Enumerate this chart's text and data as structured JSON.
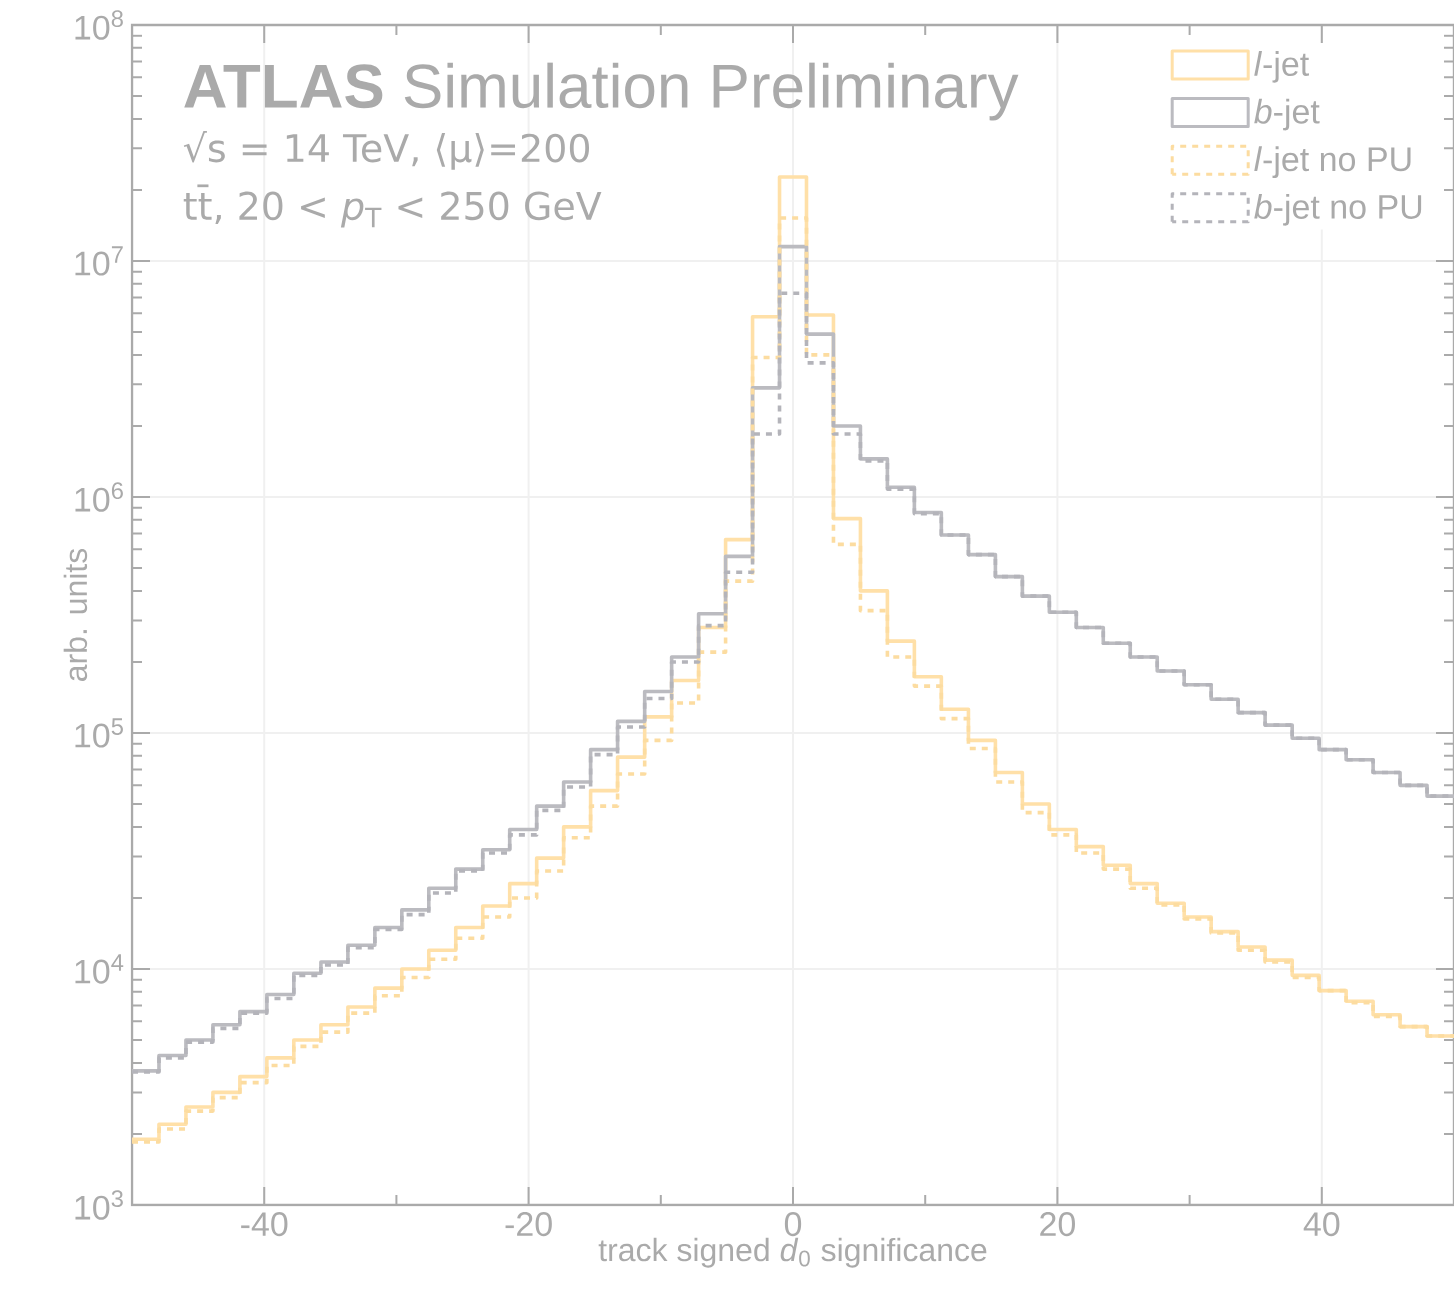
{
  "chart_data": {
    "type": "histogram",
    "title": "**ATLAS** Simulation Preliminary",
    "annotations": [
      "√s = 14 TeV, ⟨μ⟩=200",
      "tt̄, 20 < *p*$_{T}$ < 250 GeV"
    ],
    "xlabel": "track signed *d*$_{0}$ significance",
    "ylabel": "arb. units",
    "bins": [
      -50,
      -47.96,
      -45.92,
      -43.88,
      -41.84,
      -39.8,
      -37.76,
      -35.71,
      -33.67,
      -31.63,
      -29.59,
      -27.55,
      -25.51,
      -23.47,
      -21.43,
      -19.39,
      -17.35,
      -15.31,
      -13.27,
      -11.22,
      -9.18,
      -7.14,
      -5.1,
      -3.06,
      -1.02,
      1.02,
      3.06,
      5.1,
      7.14,
      9.18,
      11.22,
      13.27,
      15.31,
      17.35,
      19.39,
      21.43,
      23.47,
      25.51,
      27.55,
      29.59,
      31.63,
      33.67,
      35.71,
      37.76,
      39.8,
      41.84,
      43.88,
      45.92,
      47.96,
      50
    ],
    "series": [
      {
        "name": "*l*-jet",
        "color": "#ffe0a8",
        "line_style": "solid",
        "values": [
          1900,
          2200,
          2600,
          3000,
          3500,
          4200,
          5000,
          5800,
          6900,
          8300,
          10000,
          12000,
          15000,
          18500,
          23000,
          29500,
          40000,
          57000,
          79000,
          117000,
          167000,
          280000,
          660000,
          5800000,
          22700000,
          5900000,
          810000,
          400000,
          245000,
          173000,
          126000,
          93000,
          68000,
          50000,
          39000,
          33000,
          27500,
          23000,
          19000,
          16600,
          14400,
          12400,
          10900,
          9400,
          8100,
          7300,
          6400,
          5700,
          5200
        ]
      },
      {
        "name": "*b*-jet",
        "color": "#bbbbc0",
        "line_style": "solid",
        "values": [
          3700,
          4300,
          5000,
          5800,
          6600,
          7800,
          9600,
          10700,
          12600,
          15000,
          17800,
          22000,
          26500,
          32000,
          39000,
          49000,
          62000,
          85000,
          112000,
          150000,
          210000,
          320000,
          560000,
          2900000,
          11500000,
          4900000,
          2000000,
          1450000,
          1100000,
          860000,
          690000,
          570000,
          460000,
          380000,
          325000,
          280000,
          240000,
          210000,
          183000,
          160000,
          139000,
          122000,
          108000,
          95000,
          85000,
          77000,
          68000,
          60000,
          54000
        ]
      },
      {
        "name": "*l*-jet no PU",
        "color": "#fcdca0",
        "line_style": "dashed",
        "values": [
          1850,
          2100,
          2500,
          2850,
          3300,
          3900,
          4700,
          5400,
          6500,
          7700,
          9200,
          11000,
          13500,
          16600,
          20000,
          26000,
          36000,
          49000,
          67000,
          93000,
          134000,
          220000,
          440000,
          3900000,
          15200000,
          4000000,
          630000,
          330000,
          210000,
          158000,
          115000,
          86000,
          62000,
          46000,
          37000,
          31000,
          26500,
          22000,
          18700,
          16300,
          14200,
          12000,
          10700,
          9200,
          8100,
          7200,
          6300,
          5700,
          5200
        ]
      },
      {
        "name": "*b*-jet no PU",
        "color": "#b4b4ba",
        "line_style": "dashed",
        "values": [
          3660,
          4200,
          4900,
          5600,
          6500,
          7500,
          9400,
          10400,
          12300,
          14700,
          17000,
          21000,
          26000,
          31000,
          37000,
          47000,
          59000,
          81000,
          106000,
          140000,
          200000,
          285000,
          480000,
          1850000,
          7300000,
          3700000,
          1850000,
          1420000,
          1080000,
          850000,
          690000,
          570000,
          460000,
          380000,
          325000,
          280000,
          240000,
          210000,
          183000,
          160000,
          139000,
          122000,
          108000,
          95000,
          85000,
          77000,
          68000,
          60000,
          54000
        ]
      }
    ],
    "xlim": [
      -50,
      50
    ],
    "ylim": [
      1000,
      100000000
    ],
    "log": "y",
    "xticks": [
      -40,
      -20,
      0,
      20,
      40
    ],
    "yticks": [
      {
        "value": 1000,
        "label": "10$^{3}$"
      },
      {
        "value": 10000,
        "label": "10$^{4}$"
      },
      {
        "value": 100000,
        "label": "10$^{5}$"
      },
      {
        "value": 1000000,
        "label": "10$^{6}$"
      },
      {
        "value": 10000000,
        "label": "10$^{7}$"
      },
      {
        "value": 100000000,
        "label": "10$^{8}$"
      }
    ],
    "grid": true,
    "legend": "top right"
  }
}
